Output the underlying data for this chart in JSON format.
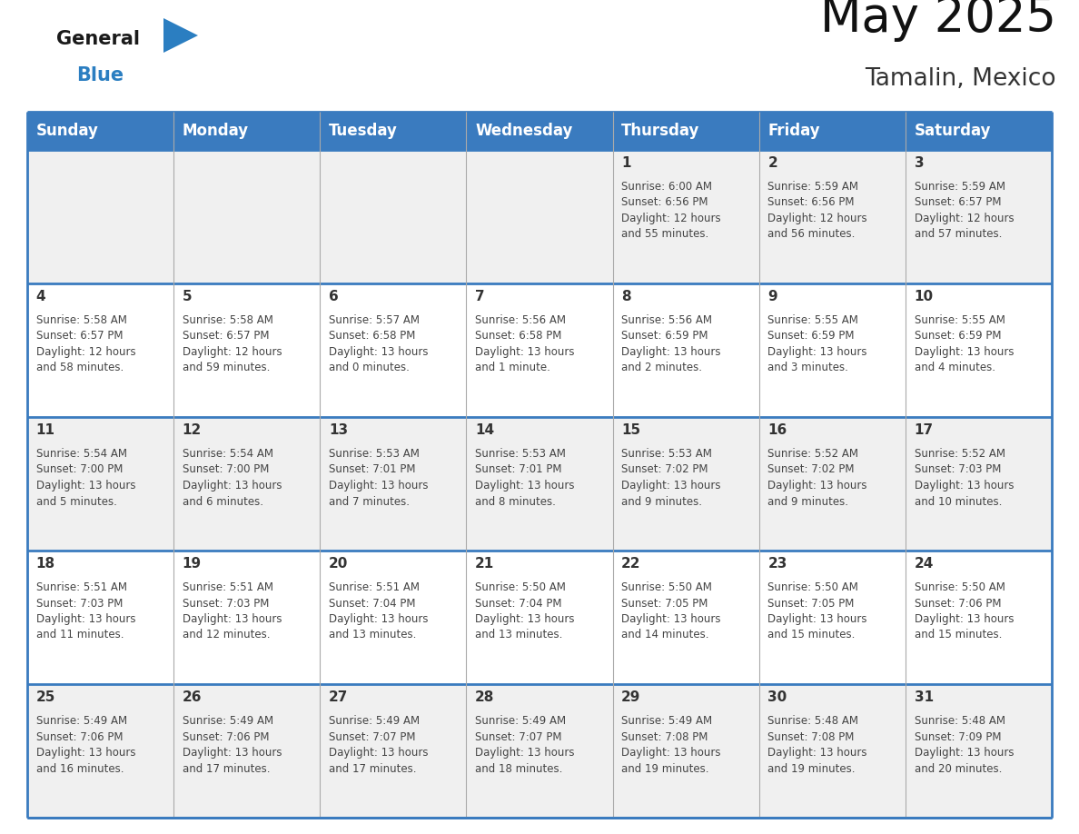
{
  "title": "May 2025",
  "subtitle": "Tamalin, Mexico",
  "days_of_week": [
    "Sunday",
    "Monday",
    "Tuesday",
    "Wednesday",
    "Thursday",
    "Friday",
    "Saturday"
  ],
  "header_bg": "#3a7bbf",
  "header_text": "#ffffff",
  "row_bg_even": "#f0f0f0",
  "row_bg_odd": "#ffffff",
  "day_number_color": "#333333",
  "cell_text_color": "#444444",
  "border_color": "#3a7bbf",
  "grid_color": "#aaaaaa",
  "weeks": [
    [
      {
        "day": "",
        "sunrise": "",
        "sunset": "",
        "daylight": ""
      },
      {
        "day": "",
        "sunrise": "",
        "sunset": "",
        "daylight": ""
      },
      {
        "day": "",
        "sunrise": "",
        "sunset": "",
        "daylight": ""
      },
      {
        "day": "",
        "sunrise": "",
        "sunset": "",
        "daylight": ""
      },
      {
        "day": "1",
        "sunrise": "6:00 AM",
        "sunset": "6:56 PM",
        "daylight": "12 hours and 55 minutes."
      },
      {
        "day": "2",
        "sunrise": "5:59 AM",
        "sunset": "6:56 PM",
        "daylight": "12 hours and 56 minutes."
      },
      {
        "day": "3",
        "sunrise": "5:59 AM",
        "sunset": "6:57 PM",
        "daylight": "12 hours and 57 minutes."
      }
    ],
    [
      {
        "day": "4",
        "sunrise": "5:58 AM",
        "sunset": "6:57 PM",
        "daylight": "12 hours and 58 minutes."
      },
      {
        "day": "5",
        "sunrise": "5:58 AM",
        "sunset": "6:57 PM",
        "daylight": "12 hours and 59 minutes."
      },
      {
        "day": "6",
        "sunrise": "5:57 AM",
        "sunset": "6:58 PM",
        "daylight": "13 hours and 0 minutes."
      },
      {
        "day": "7",
        "sunrise": "5:56 AM",
        "sunset": "6:58 PM",
        "daylight": "13 hours and 1 minute."
      },
      {
        "day": "8",
        "sunrise": "5:56 AM",
        "sunset": "6:59 PM",
        "daylight": "13 hours and 2 minutes."
      },
      {
        "day": "9",
        "sunrise": "5:55 AM",
        "sunset": "6:59 PM",
        "daylight": "13 hours and 3 minutes."
      },
      {
        "day": "10",
        "sunrise": "5:55 AM",
        "sunset": "6:59 PM",
        "daylight": "13 hours and 4 minutes."
      }
    ],
    [
      {
        "day": "11",
        "sunrise": "5:54 AM",
        "sunset": "7:00 PM",
        "daylight": "13 hours and 5 minutes."
      },
      {
        "day": "12",
        "sunrise": "5:54 AM",
        "sunset": "7:00 PM",
        "daylight": "13 hours and 6 minutes."
      },
      {
        "day": "13",
        "sunrise": "5:53 AM",
        "sunset": "7:01 PM",
        "daylight": "13 hours and 7 minutes."
      },
      {
        "day": "14",
        "sunrise": "5:53 AM",
        "sunset": "7:01 PM",
        "daylight": "13 hours and 8 minutes."
      },
      {
        "day": "15",
        "sunrise": "5:53 AM",
        "sunset": "7:02 PM",
        "daylight": "13 hours and 9 minutes."
      },
      {
        "day": "16",
        "sunrise": "5:52 AM",
        "sunset": "7:02 PM",
        "daylight": "13 hours and 9 minutes."
      },
      {
        "day": "17",
        "sunrise": "5:52 AM",
        "sunset": "7:03 PM",
        "daylight": "13 hours and 10 minutes."
      }
    ],
    [
      {
        "day": "18",
        "sunrise": "5:51 AM",
        "sunset": "7:03 PM",
        "daylight": "13 hours and 11 minutes."
      },
      {
        "day": "19",
        "sunrise": "5:51 AM",
        "sunset": "7:03 PM",
        "daylight": "13 hours and 12 minutes."
      },
      {
        "day": "20",
        "sunrise": "5:51 AM",
        "sunset": "7:04 PM",
        "daylight": "13 hours and 13 minutes."
      },
      {
        "day": "21",
        "sunrise": "5:50 AM",
        "sunset": "7:04 PM",
        "daylight": "13 hours and 13 minutes."
      },
      {
        "day": "22",
        "sunrise": "5:50 AM",
        "sunset": "7:05 PM",
        "daylight": "13 hours and 14 minutes."
      },
      {
        "day": "23",
        "sunrise": "5:50 AM",
        "sunset": "7:05 PM",
        "daylight": "13 hours and 15 minutes."
      },
      {
        "day": "24",
        "sunrise": "5:50 AM",
        "sunset": "7:06 PM",
        "daylight": "13 hours and 15 minutes."
      }
    ],
    [
      {
        "day": "25",
        "sunrise": "5:49 AM",
        "sunset": "7:06 PM",
        "daylight": "13 hours and 16 minutes."
      },
      {
        "day": "26",
        "sunrise": "5:49 AM",
        "sunset": "7:06 PM",
        "daylight": "13 hours and 17 minutes."
      },
      {
        "day": "27",
        "sunrise": "5:49 AM",
        "sunset": "7:07 PM",
        "daylight": "13 hours and 17 minutes."
      },
      {
        "day": "28",
        "sunrise": "5:49 AM",
        "sunset": "7:07 PM",
        "daylight": "13 hours and 18 minutes."
      },
      {
        "day": "29",
        "sunrise": "5:49 AM",
        "sunset": "7:08 PM",
        "daylight": "13 hours and 19 minutes."
      },
      {
        "day": "30",
        "sunrise": "5:48 AM",
        "sunset": "7:08 PM",
        "daylight": "13 hours and 19 minutes."
      },
      {
        "day": "31",
        "sunrise": "5:48 AM",
        "sunset": "7:09 PM",
        "daylight": "13 hours and 20 minutes."
      }
    ]
  ],
  "logo_general_color": "#1a1a1a",
  "logo_blue_color": "#2b7ec1",
  "title_fontsize": 38,
  "subtitle_fontsize": 19,
  "header_fontsize": 12,
  "day_num_fontsize": 11,
  "cell_fontsize": 8.5
}
